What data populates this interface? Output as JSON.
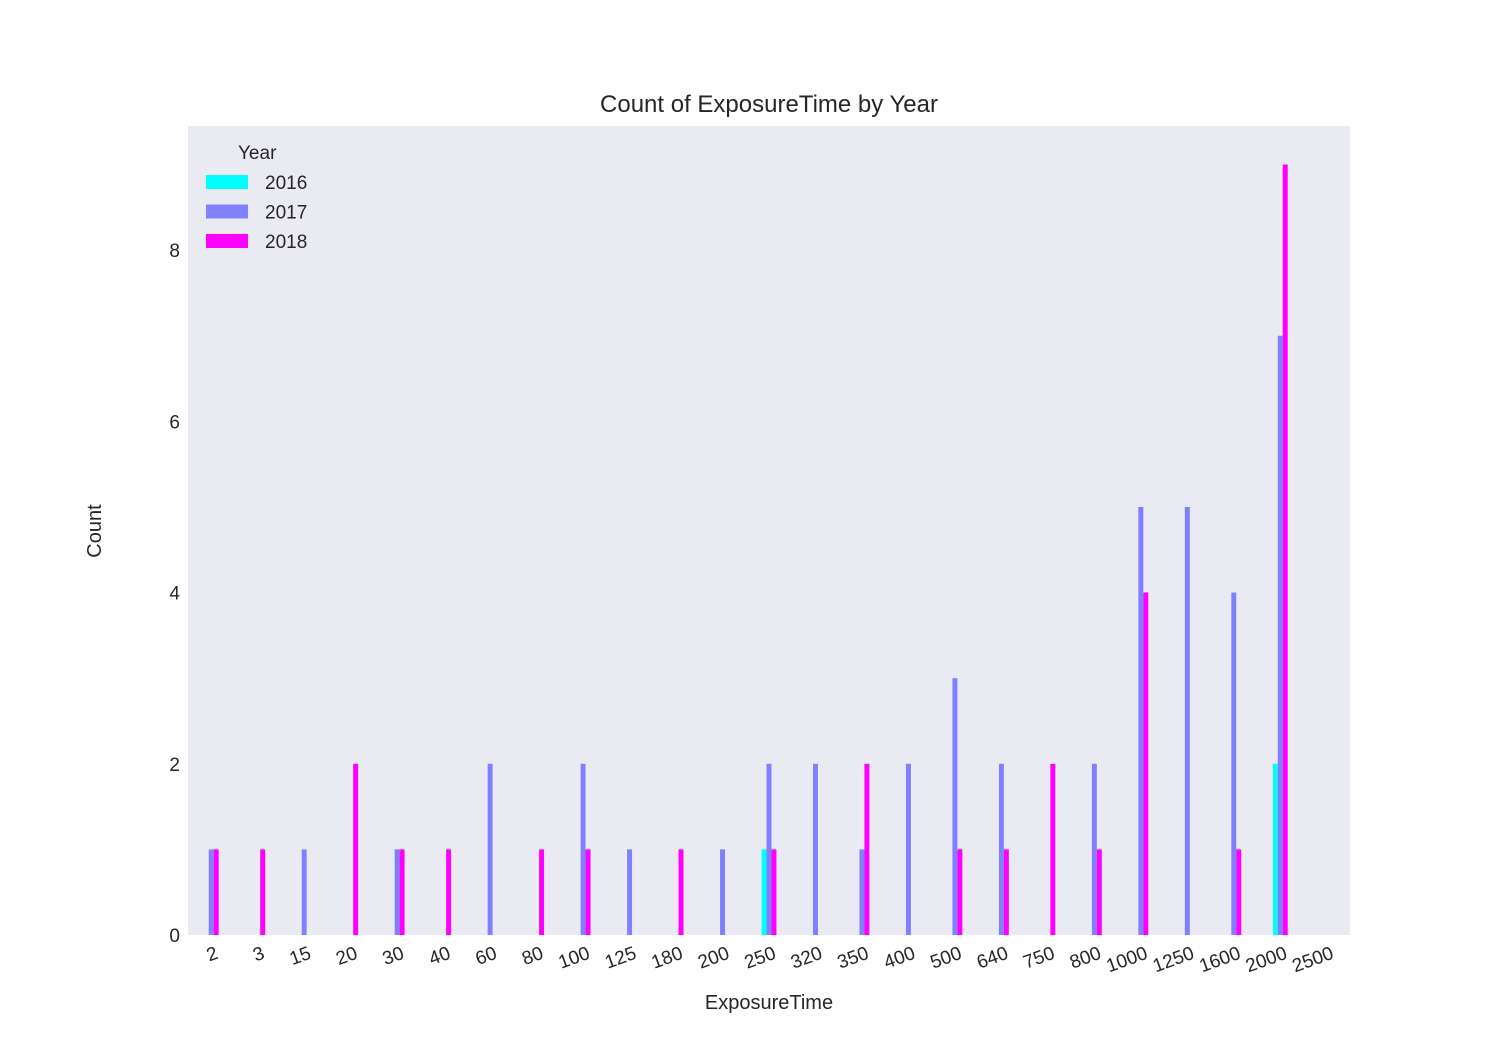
{
  "chart_data": {
    "type": "bar",
    "title": "Count of ExposureTime by Year",
    "xlabel": "ExposureTime",
    "ylabel": "Count",
    "categories": [
      "2",
      "3",
      "15",
      "20",
      "30",
      "40",
      "60",
      "80",
      "100",
      "125",
      "180",
      "200",
      "250",
      "320",
      "350",
      "400",
      "500",
      "640",
      "750",
      "800",
      "1000",
      "1250",
      "1600",
      "2000",
      "2500"
    ],
    "series": [
      {
        "name": "2016",
        "color": "#00ffff",
        "values": [
          0,
          0,
          0,
          0,
          0,
          0,
          0,
          0,
          0,
          0,
          0,
          0,
          1,
          0,
          0,
          0,
          0,
          0,
          0,
          0,
          0,
          0,
          0,
          2,
          0
        ]
      },
      {
        "name": "2017",
        "color": "#8080ff",
        "values": [
          1,
          0,
          1,
          0,
          1,
          0,
          2,
          0,
          2,
          1,
          0,
          1,
          2,
          2,
          1,
          2,
          3,
          2,
          0,
          2,
          5,
          5,
          4,
          7,
          0
        ]
      },
      {
        "name": "2018",
        "color": "#ff00ff",
        "values": [
          1,
          1,
          0,
          2,
          1,
          1,
          0,
          1,
          1,
          0,
          1,
          0,
          1,
          0,
          2,
          0,
          1,
          1,
          2,
          1,
          4,
          0,
          1,
          9,
          0
        ]
      }
    ],
    "ylim": [
      0,
      9.45
    ],
    "yticks": [
      0,
      2,
      4,
      6,
      8
    ],
    "legend_title": "Year",
    "legend_position": "top-left",
    "background": "#eaeaf2",
    "grid": false
  }
}
